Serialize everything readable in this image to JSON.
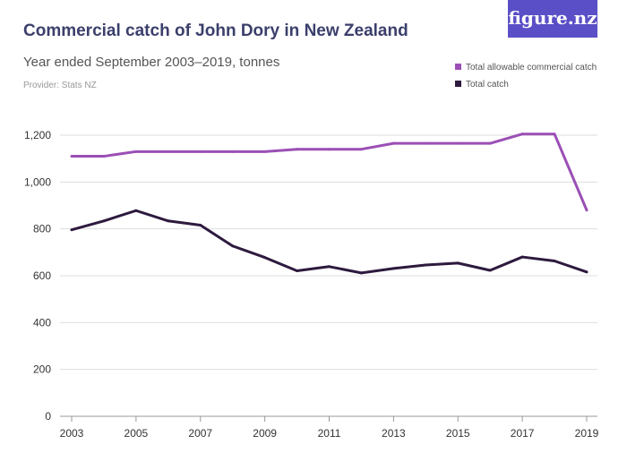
{
  "logo": "figure.nz",
  "chart_data": {
    "type": "line",
    "title": "Commercial catch of John Dory in New Zealand",
    "subtitle": "Year ended September 2003–2019, tonnes",
    "provider": "Provider: Stats NZ",
    "x": [
      2003,
      2004,
      2005,
      2006,
      2007,
      2008,
      2009,
      2010,
      2011,
      2012,
      2013,
      2014,
      2015,
      2016,
      2017,
      2018,
      2019
    ],
    "x_tick_labels": [
      "2003",
      "2005",
      "2007",
      "2009",
      "2011",
      "2013",
      "2015",
      "2017",
      "2019"
    ],
    "y_tick_labels": [
      "0",
      "200",
      "400",
      "600",
      "800",
      "1,000",
      "1,200"
    ],
    "ylim": [
      0,
      1200
    ],
    "grid": true,
    "legend_position": "top-right",
    "series": [
      {
        "name": "Total allowable commercial catch",
        "color": "#9b4fb5",
        "values": [
          1110,
          1110,
          1130,
          1130,
          1130,
          1130,
          1130,
          1140,
          1140,
          1140,
          1165,
          1165,
          1165,
          1165,
          1205,
          1205,
          880
        ]
      },
      {
        "name": "Total catch",
        "color": "#2e1a3e",
        "values": [
          796,
          834,
          878,
          834,
          816,
          727,
          678,
          621,
          639,
          612,
          631,
          646,
          654,
          623,
          680,
          663,
          616
        ]
      }
    ]
  }
}
